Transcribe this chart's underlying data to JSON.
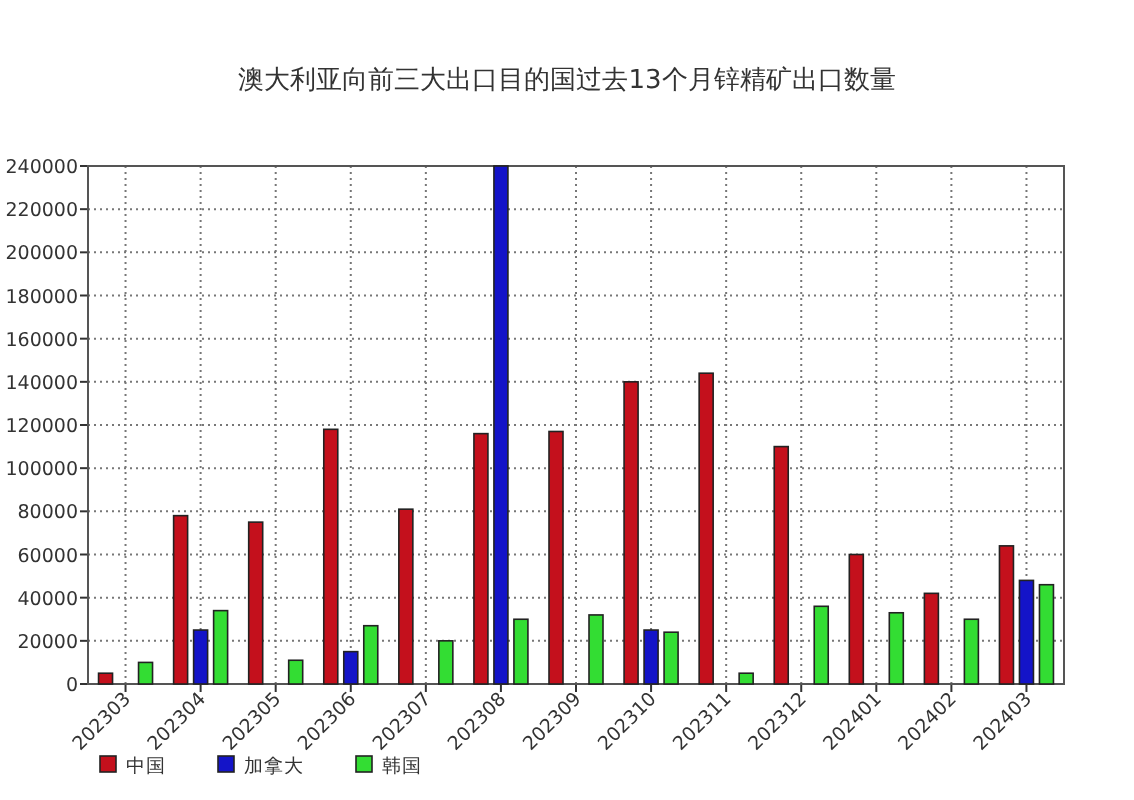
{
  "chart_data": {
    "type": "bar",
    "title": "澳大利亚向前三大出口目的国过去13个月锌精矿出口数量",
    "categories": [
      "202303",
      "202304",
      "202305",
      "202306",
      "202307",
      "202308",
      "202309",
      "202310",
      "202311",
      "202312",
      "202401",
      "202402",
      "202403"
    ],
    "series": [
      {
        "name": "中国",
        "color": "#c4101c",
        "values": [
          5000,
          78000,
          75000,
          118000,
          81000,
          116000,
          117000,
          140000,
          144000,
          110000,
          60000,
          42000,
          64000
        ]
      },
      {
        "name": "加拿大",
        "color": "#1414c8",
        "values": [
          null,
          25000,
          null,
          15000,
          null,
          240000,
          null,
          25000,
          null,
          null,
          null,
          null,
          48000
        ]
      },
      {
        "name": "韩国",
        "color": "#33dd33",
        "values": [
          10000,
          34000,
          11000,
          27000,
          20000,
          30000,
          32000,
          24000,
          5000,
          36000,
          33000,
          30000,
          46000
        ]
      }
    ],
    "ylim": [
      0,
      240000
    ],
    "yticks": [
      0,
      20000,
      40000,
      60000,
      80000,
      100000,
      120000,
      140000,
      160000,
      180000,
      200000,
      220000,
      240000
    ],
    "grid": true,
    "legend": "bottom"
  }
}
